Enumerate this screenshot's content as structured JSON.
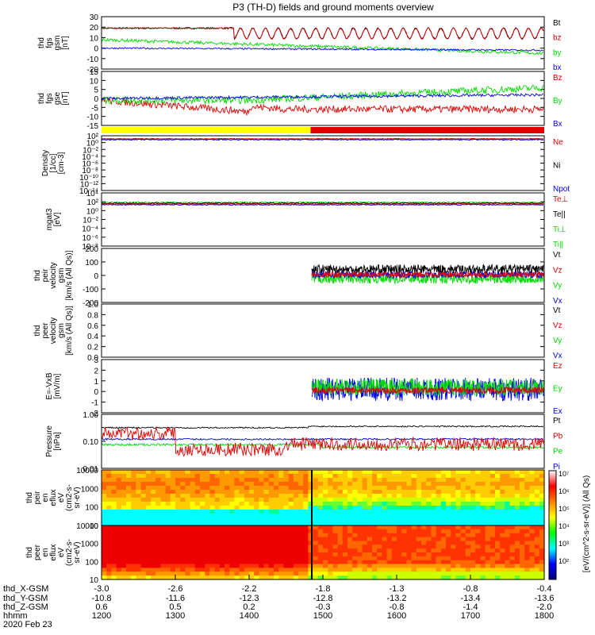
{
  "title": "P3 (TH-D) fields and ground moments overview",
  "date_label": "2020 Feb 23",
  "colors": {
    "black": "#000000",
    "red": "#e00000",
    "green": "#00dd00",
    "blue": "#0000ee",
    "yellow": "#ffff00"
  },
  "chart_data": [
    {
      "id": "fgs-gsm",
      "type": "line",
      "ylabel_lines": [
        "thd",
        "fgs",
        "gsm",
        "[nT]"
      ],
      "ylim": [
        -20,
        30
      ],
      "yticks": [
        "30",
        "20",
        "10",
        "0",
        "-10",
        "-20"
      ],
      "legend": [
        {
          "label": "Bt",
          "color": "black"
        },
        {
          "label": "bz",
          "color": "red"
        },
        {
          "label": "by",
          "color": "green"
        },
        {
          "label": "bx",
          "color": "blue"
        }
      ],
      "series_approx": [
        {
          "name": "Bt",
          "level_start": 19,
          "level_end": 20,
          "dips_after": 13.8
        },
        {
          "name": "bz",
          "level_start": 18,
          "level_end": 19,
          "dips_after": 13.8
        },
        {
          "name": "by",
          "level_start": 8,
          "level_end": -5
        },
        {
          "name": "bx",
          "level_start": 0,
          "level_end": -2
        }
      ]
    },
    {
      "id": "fgs-gse",
      "type": "line",
      "ylabel_lines": [
        "thd",
        "fgs",
        "gse",
        "[nT]"
      ],
      "ylim": [
        -15,
        15
      ],
      "yticks": [
        "15",
        "10",
        "5",
        "0",
        "-5",
        "-10",
        "-15"
      ],
      "legend": [
        {
          "label": "Bz",
          "color": "red"
        },
        {
          "label": "By",
          "color": "green"
        },
        {
          "label": "Bx",
          "color": "blue"
        }
      ],
      "series_approx": [
        {
          "name": "Bz",
          "level_start": -1,
          "level_end": -6
        },
        {
          "name": "By",
          "level_start": -1,
          "level_end": 6
        },
        {
          "name": "Bx",
          "level_start": 0,
          "level_end": 2
        }
      ]
    },
    {
      "id": "mode-bar",
      "type": "bar",
      "segments": [
        {
          "from": "12:00",
          "to": "14:50",
          "color": "yellow"
        },
        {
          "from": "14:50",
          "to": "18:00",
          "color": "red"
        }
      ]
    },
    {
      "id": "density",
      "type": "line",
      "ylabel_lines": [
        "Density",
        "[1/cc]",
        "[cm-3]"
      ],
      "scale": "log",
      "yticks": [
        "10²",
        "10⁰",
        "10⁻²",
        "10⁻⁴",
        "10⁻⁶",
        "10⁻⁸",
        "10⁻¹⁰",
        "10⁻¹²",
        "10⁻¹⁴"
      ],
      "legend": [
        {
          "label": "Ne",
          "color": "red"
        },
        {
          "label": "Ni",
          "color": "black"
        },
        {
          "label": "Npot",
          "color": "blue"
        }
      ]
    },
    {
      "id": "temperature",
      "type": "line",
      "ylabel_lines": [
        "mgat3",
        "[eV]"
      ],
      "scale": "log",
      "yticks": [
        "10⁴",
        "10²",
        "10⁰",
        "10⁻²",
        "10⁻⁴",
        "10⁻⁶",
        "10⁻⁸"
      ],
      "legend": [
        {
          "label": "Te⊥",
          "color": "red"
        },
        {
          "label": "Te||",
          "color": "black"
        },
        {
          "label": "Ti⊥",
          "color": "green"
        },
        {
          "label": "Ti||",
          "color": "green"
        }
      ]
    },
    {
      "id": "peir-velocity",
      "type": "line",
      "ylabel_lines": [
        "thd",
        "peir",
        "velocity",
        "gsm",
        "[km/s (All Qs)]"
      ],
      "ylim": [
        -200,
        200
      ],
      "yticks": [
        "200",
        "100",
        "0",
        "-100",
        "-200"
      ],
      "legend": [
        {
          "label": "Vt",
          "color": "black"
        },
        {
          "label": "Vz",
          "color": "red"
        },
        {
          "label": "Vy",
          "color": "green"
        },
        {
          "label": "Vx",
          "color": "blue"
        }
      ],
      "series_approx": [
        {
          "name": "Vt",
          "level": 40,
          "starts": "14:50"
        },
        {
          "name": "Vz",
          "level": 0,
          "starts": "14:50"
        },
        {
          "name": "Vy",
          "level": -30,
          "starts": "14:50"
        },
        {
          "name": "Vx",
          "level": 5,
          "starts": "14:50"
        }
      ]
    },
    {
      "id": "peer-velocity",
      "type": "line",
      "ylabel_lines": [
        "thd",
        "peer",
        "velocity",
        "gsm",
        "[km/s (All Qs)]"
      ],
      "ylim": [
        0,
        1
      ],
      "yticks": [
        "1.0",
        "0.8",
        "0.6",
        "0.4",
        "0.2",
        "0.0"
      ],
      "legend": [
        {
          "label": "Vt",
          "color": "black"
        },
        {
          "label": "Vz",
          "color": "red"
        },
        {
          "label": "Vy",
          "color": "green"
        },
        {
          "label": "Vx",
          "color": "blue"
        }
      ]
    },
    {
      "id": "efield",
      "type": "line",
      "ylabel_lines": [
        "E=-VxB",
        "[mV/m]"
      ],
      "ylim": [
        -2,
        3
      ],
      "yticks": [
        "3",
        "2",
        "1",
        "0",
        "-1",
        "-2"
      ],
      "legend": [
        {
          "label": "Ez",
          "color": "red"
        },
        {
          "label": "Ey",
          "color": "green"
        },
        {
          "label": "Ex",
          "color": "blue"
        }
      ]
    },
    {
      "id": "pressure",
      "type": "line",
      "ylabel_lines": [
        "Pressure",
        "[nPa]"
      ],
      "scale": "log",
      "ylim": [
        0.01,
        1.0
      ],
      "yticks": [
        "1.00",
        "0.10",
        "0.01"
      ],
      "legend": [
        {
          "label": "Pt",
          "color": "black"
        },
        {
          "label": "Pb",
          "color": "red"
        },
        {
          "label": "Pe",
          "color": "green"
        },
        {
          "label": "Pi",
          "color": "blue"
        }
      ]
    },
    {
      "id": "peir-spec",
      "type": "heatmap",
      "ylabel_lines": [
        "thd",
        "peir",
        "en",
        "eflux",
        "eV",
        "(cm2-s-",
        "sr-eV)"
      ],
      "yticks": [
        "10000",
        "1000",
        "100",
        "10"
      ]
    },
    {
      "id": "peer-spec",
      "type": "heatmap",
      "ylabel_lines": [
        "thd",
        "peer",
        "en",
        "eflux",
        "eV",
        "(cm2-s-",
        "sr-eV)"
      ],
      "yticks": [
        "10000",
        "1000",
        "100",
        "10"
      ]
    },
    {
      "id": "colorbar",
      "type": "heatmap",
      "label": "[eV/(cm^2-s-sr-eV)] (All Qs)",
      "ticks": [
        "10⁷",
        "10⁶",
        "10⁵",
        "10⁴",
        "10³",
        "10²"
      ]
    }
  ],
  "x_axis": {
    "row_labels": [
      "thd_X-GSM",
      "thd_Y-GSM",
      "thd_Z-GSM",
      "hhmm"
    ],
    "columns": [
      [
        "-3.0",
        "-10.8",
        "0.6",
        "1200"
      ],
      [
        "-2.6",
        "-11.6",
        "0.5",
        "1300"
      ],
      [
        "-2.2",
        "-12.3",
        "0.2",
        "1400"
      ],
      [
        "-1.8",
        "-12.8",
        "-0.3",
        "1500"
      ],
      [
        "-1.3",
        "-13.2",
        "-0.8",
        "1600"
      ],
      [
        "-0.8",
        "-13.4",
        "-1.4",
        "1700"
      ],
      [
        "-0.4",
        "-13.6",
        "-2.0",
        "1800"
      ]
    ]
  }
}
